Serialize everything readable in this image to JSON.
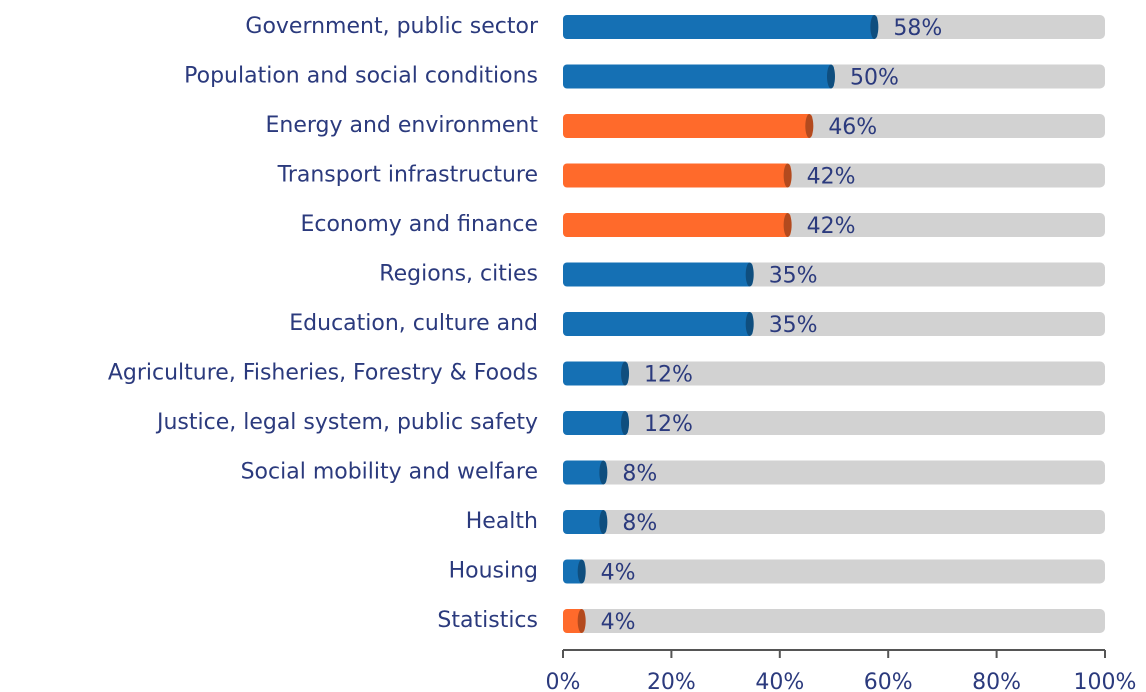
{
  "chart_data": {
    "type": "bar",
    "orientation": "horizontal",
    "categories": [
      "Government, public sector",
      "Population and social conditions",
      "Energy and environment",
      "Transport infrastructure",
      "Economy and finance",
      "Regions, cities",
      "Education, culture and",
      "Agriculture, Fisheries, Forestry & Foods",
      "Justice, legal system, public safety",
      "Social mobility and welfare",
      "Health",
      "Housing",
      "Statistics"
    ],
    "values": [
      58,
      50,
      46,
      42,
      42,
      35,
      35,
      12,
      12,
      8,
      8,
      4,
      4
    ],
    "value_labels": [
      "58%",
      "50%",
      "46%",
      "42%",
      "42%",
      "35%",
      "35%",
      "12%",
      "12%",
      "8%",
      "8%",
      "4%",
      "4%"
    ],
    "colors": [
      "#1570b4",
      "#1570b4",
      "#ff6a2b",
      "#ff6a2b",
      "#ff6a2b",
      "#1570b4",
      "#1570b4",
      "#1570b4",
      "#1570b4",
      "#1570b4",
      "#1570b4",
      "#1570b4",
      "#ff6a2b"
    ],
    "xlim": [
      0,
      100
    ],
    "xticks": [
      {
        "value": 0,
        "label": "0%"
      },
      {
        "value": 20,
        "label": "20%"
      },
      {
        "value": 40,
        "label": "40%"
      },
      {
        "value": 60,
        "label": "60%"
      },
      {
        "value": 80,
        "label": "80%"
      },
      {
        "value": 100,
        "label": "100%"
      }
    ],
    "grid": false
  }
}
